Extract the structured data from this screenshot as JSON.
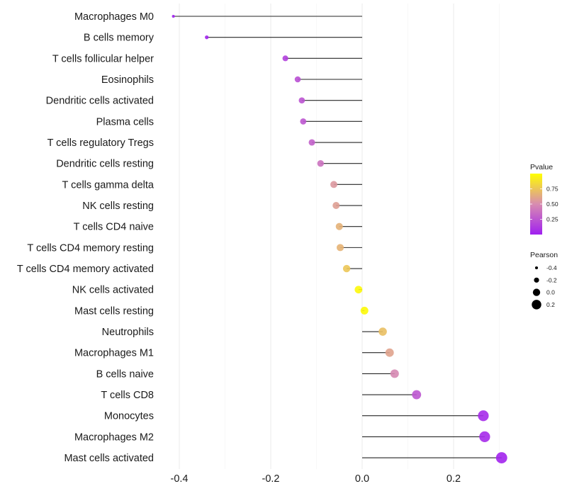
{
  "chart_data": {
    "type": "lollipop",
    "title": "",
    "xlabel": "",
    "ylabel": "",
    "xlim": [
      -0.43,
      0.32
    ],
    "x_ticks": [
      -0.4,
      -0.2,
      0.0,
      0.2
    ],
    "x_tick_labels": [
      "-0.4",
      "-0.2",
      "0.0",
      "0.2"
    ],
    "minor_gridlines": [
      -0.3,
      -0.1,
      0.1,
      0.3
    ],
    "grid": true,
    "categories": [
      "Macrophages M0",
      "B cells memory",
      "T cells follicular helper",
      "Eosinophils",
      "Dendritic cells activated",
      "Plasma cells",
      "T cells regulatory  Tregs",
      "Dendritic cells resting",
      "T cells gamma delta",
      "NK cells resting",
      "T cells CD4 naive",
      "T cells CD4 memory resting",
      "T cells CD4 memory activated",
      "NK cells activated",
      "Mast cells resting",
      "Neutrophils",
      "Macrophages M1",
      "B cells naive",
      "T cells CD8",
      "Monocytes",
      "Macrophages M2",
      "Mast cells activated"
    ],
    "series": [
      {
        "name": "Pearson",
        "values": [
          -0.413,
          -0.34,
          -0.168,
          -0.141,
          -0.132,
          -0.129,
          -0.11,
          -0.091,
          -0.062,
          -0.057,
          -0.05,
          -0.048,
          -0.034,
          -0.008,
          0.005,
          0.045,
          0.06,
          0.071,
          0.119,
          0.265,
          0.268,
          0.305
        ]
      },
      {
        "name": "Pvalue",
        "values": [
          0.0,
          0.02,
          0.15,
          0.22,
          0.24,
          0.25,
          0.3,
          0.38,
          0.55,
          0.58,
          0.66,
          0.67,
          0.75,
          0.97,
          0.98,
          0.72,
          0.6,
          0.48,
          0.25,
          0.05,
          0.05,
          0.02
        ]
      }
    ],
    "legend": {
      "placement": "right",
      "color": {
        "title": "Pvalue",
        "ticks": [
          0.25,
          0.5,
          0.75
        ],
        "tick_labels": [
          "0.25",
          "0.50",
          "0.75"
        ],
        "range": [
          0.0,
          1.0
        ],
        "low_color": "#A020F0",
        "mid_color": "#D88CB0",
        "high_color": "#FFFF00"
      },
      "size": {
        "title": "Pearson",
        "values": [
          -0.4,
          -0.2,
          0.0,
          0.2
        ],
        "labels": [
          "-0.4",
          "-0.2",
          "0.0",
          "0.2"
        ]
      }
    },
    "colors": {
      "stem": "#000000",
      "grid": "#ebebeb"
    }
  }
}
